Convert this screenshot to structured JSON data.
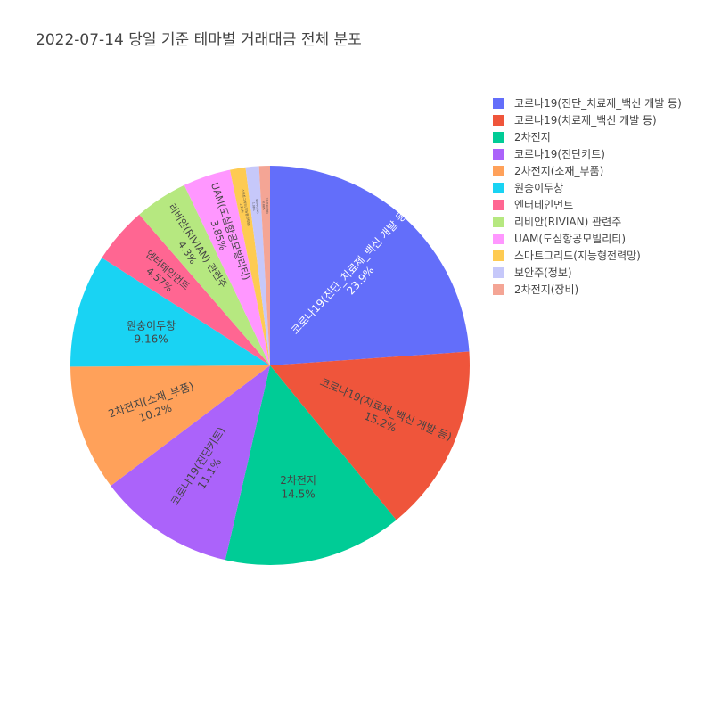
{
  "chart_data": {
    "type": "pie",
    "title": "2022-07-14 당일 기준 테마별 거래대금 전체 분포",
    "legend_position": "top-right",
    "direction": "clockwise",
    "slices": [
      {
        "label": "코로나19(진단_치료제_백신 개발 등)",
        "value": 23.9,
        "text": "23.9%",
        "color": "#636efa",
        "text_color": "#ffffff"
      },
      {
        "label": "코로나19(치료제_백신 개발 등)",
        "value": 15.2,
        "text": "15.2%",
        "color": "#EF553B",
        "text_color": "#444444"
      },
      {
        "label": "2차전지",
        "value": 14.5,
        "text": "14.5%",
        "color": "#00cc96",
        "text_color": "#444444"
      },
      {
        "label": "코로나19(진단키트)",
        "value": 11.1,
        "text": "11.1%",
        "color": "#ab63fa",
        "text_color": "#444444"
      },
      {
        "label": "2차전지(소재_부품)",
        "value": 10.2,
        "text": "10.2%",
        "color": "#FFA15A",
        "text_color": "#444444"
      },
      {
        "label": "원숭이두창",
        "value": 9.16,
        "text": "9.16%",
        "color": "#19d3f3",
        "text_color": "#444444"
      },
      {
        "label": "엔터테인먼트",
        "value": 4.57,
        "text": "4.57%",
        "color": "#FF6692",
        "text_color": "#444444"
      },
      {
        "label": "리비안(RIVIAN) 관련주",
        "value": 4.3,
        "text": "4.3%",
        "color": "#B6E880",
        "text_color": "#444444"
      },
      {
        "label": "UAM(도심항공모빌리티)",
        "value": 3.85,
        "text": "3.85%",
        "color": "#FF97FF",
        "text_color": "#444444"
      },
      {
        "label": "스마트그리드(지능형전력망)",
        "value": 1.26,
        "text": "1.26%",
        "color": "#FECB52",
        "text_color": "#444444"
      },
      {
        "label": "보안주(정보)",
        "value": 1.08,
        "text": "1.08%",
        "color": "#c6c8fa",
        "text_color": "#444444"
      },
      {
        "label": "2차전지(장비)",
        "value": 0.88,
        "text": "0.88%",
        "color": "#f4a595",
        "text_color": "#444444"
      }
    ]
  }
}
